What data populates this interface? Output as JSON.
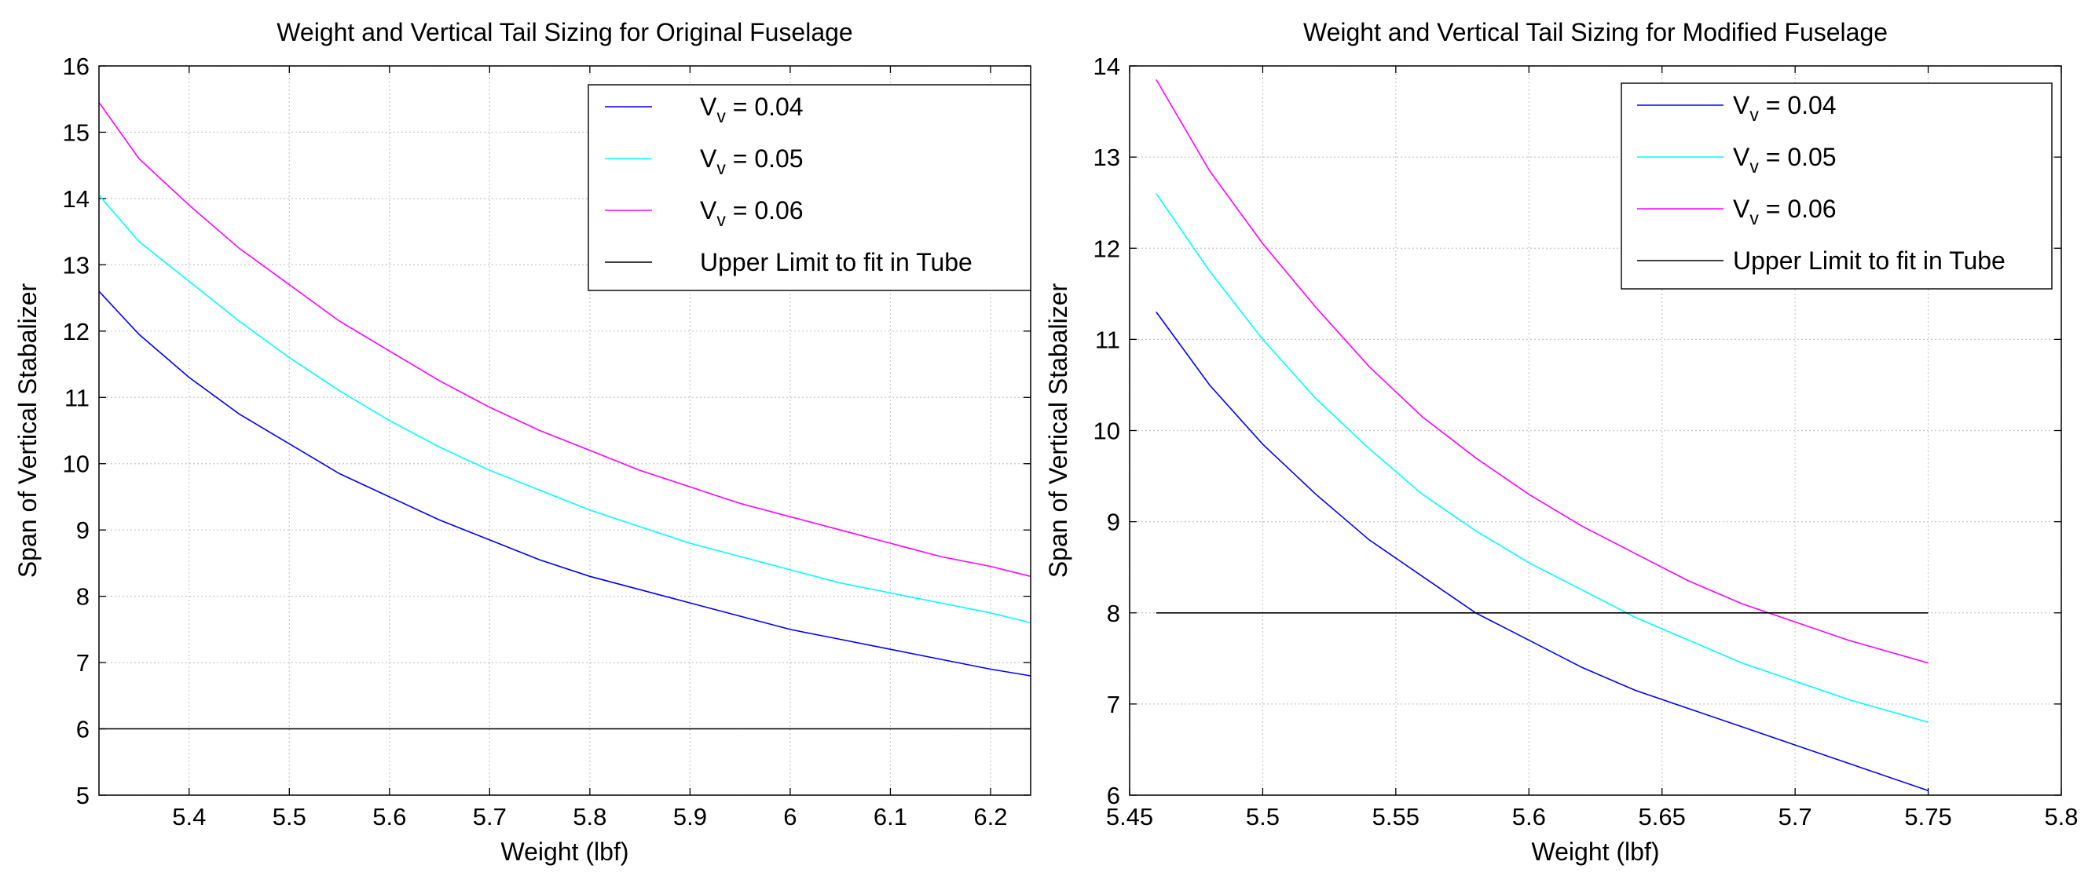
{
  "chart_data": [
    {
      "type": "line",
      "title": "Weight and Vertical Tail Sizing for Original Fuselage",
      "xlabel": "Weight (lbf)",
      "ylabel": "Span of Vertical Stabalizer",
      "xlim": [
        5.31,
        6.24
      ],
      "ylim": [
        5,
        16
      ],
      "xticks": [
        "5.4",
        "5.5",
        "5.6",
        "5.7",
        "5.8",
        "5.9",
        "6",
        "6.1",
        "6.2"
      ],
      "yticks": [
        "5",
        "6",
        "7",
        "8",
        "9",
        "10",
        "11",
        "12",
        "13",
        "14",
        "15",
        "16"
      ],
      "grid": true,
      "legend_position": "top-right",
      "series": [
        {
          "name": "V_v = 0.04",
          "color": "#0000ff",
          "x": [
            5.31,
            5.35,
            5.4,
            5.45,
            5.5,
            5.55,
            5.6,
            5.65,
            5.7,
            5.75,
            5.8,
            5.85,
            5.9,
            5.95,
            6.0,
            6.05,
            6.1,
            6.15,
            6.2,
            6.24
          ],
          "y": [
            12.6,
            11.95,
            11.3,
            10.75,
            10.3,
            9.85,
            9.5,
            9.15,
            8.85,
            8.55,
            8.3,
            8.1,
            7.9,
            7.7,
            7.5,
            7.35,
            7.2,
            7.05,
            6.9,
            6.8
          ]
        },
        {
          "name": "V_v = 0.05",
          "color": "#00ffff",
          "x": [
            5.31,
            5.35,
            5.4,
            5.45,
            5.5,
            5.55,
            5.6,
            5.65,
            5.7,
            5.75,
            5.8,
            5.85,
            5.9,
            5.95,
            6.0,
            6.05,
            6.1,
            6.15,
            6.2,
            6.24
          ],
          "y": [
            14.05,
            13.35,
            12.75,
            12.15,
            11.6,
            11.1,
            10.65,
            10.25,
            9.9,
            9.6,
            9.3,
            9.05,
            8.8,
            8.6,
            8.4,
            8.2,
            8.05,
            7.9,
            7.75,
            7.6
          ]
        },
        {
          "name": "V_v = 0.06",
          "color": "#ff00ff",
          "x": [
            5.31,
            5.35,
            5.4,
            5.45,
            5.5,
            5.55,
            5.6,
            5.65,
            5.7,
            5.75,
            5.8,
            5.85,
            5.9,
            5.95,
            6.0,
            6.05,
            6.1,
            6.15,
            6.2,
            6.24
          ],
          "y": [
            15.45,
            14.6,
            13.9,
            13.25,
            12.7,
            12.15,
            11.7,
            11.25,
            10.85,
            10.5,
            10.2,
            9.9,
            9.65,
            9.4,
            9.2,
            9.0,
            8.8,
            8.6,
            8.45,
            8.3
          ]
        },
        {
          "name": "Upper Limit to fit in Tube",
          "color": "#000000",
          "x": [
            5.31,
            6.24
          ],
          "y": [
            6,
            6
          ]
        }
      ],
      "legend": {
        "entries": [
          {
            "main": "V",
            "sub": "v",
            "rest": " = 0.04",
            "color": "#0000ff"
          },
          {
            "main": "V",
            "sub": "v",
            "rest": " = 0.05",
            "color": "#00ffff"
          },
          {
            "main": "V",
            "sub": "v",
            "rest": " = 0.06",
            "color": "#ff00ff"
          },
          {
            "main": "Upper Limit to fit in Tube",
            "sub": "",
            "rest": "",
            "color": "#000000"
          }
        ]
      }
    },
    {
      "type": "line",
      "title": "Weight and Vertical Tail Sizing for Modified Fuselage",
      "xlabel": "Weight (lbf)",
      "ylabel": "Span of Vertical Stabalizer",
      "xlim": [
        5.45,
        5.8
      ],
      "ylim": [
        6,
        14
      ],
      "xticks": [
        "5.45",
        "5.5",
        "5.55",
        "5.6",
        "5.65",
        "5.7",
        "5.75",
        "5.8"
      ],
      "yticks": [
        "6",
        "7",
        "8",
        "9",
        "10",
        "11",
        "12",
        "13",
        "14"
      ],
      "grid": true,
      "legend_position": "top-right",
      "series": [
        {
          "name": "V_v = 0.04",
          "color": "#0000ff",
          "x": [
            5.46,
            5.48,
            5.5,
            5.52,
            5.54,
            5.56,
            5.58,
            5.6,
            5.62,
            5.64,
            5.66,
            5.68,
            5.7,
            5.72,
            5.75
          ],
          "y": [
            11.3,
            10.5,
            9.85,
            9.3,
            8.8,
            8.4,
            8.0,
            7.7,
            7.4,
            7.15,
            6.95,
            6.75,
            6.55,
            6.35,
            6.05
          ]
        },
        {
          "name": "V_v = 0.05",
          "color": "#00ffff",
          "x": [
            5.46,
            5.48,
            5.5,
            5.52,
            5.54,
            5.56,
            5.58,
            5.6,
            5.62,
            5.64,
            5.66,
            5.68,
            5.7,
            5.72,
            5.75
          ],
          "y": [
            12.6,
            11.75,
            11.0,
            10.35,
            9.8,
            9.3,
            8.9,
            8.55,
            8.25,
            7.95,
            7.7,
            7.45,
            7.25,
            7.05,
            6.8
          ]
        },
        {
          "name": "V_v = 0.06",
          "color": "#ff00ff",
          "x": [
            5.46,
            5.48,
            5.5,
            5.52,
            5.54,
            5.56,
            5.58,
            5.6,
            5.62,
            5.64,
            5.66,
            5.68,
            5.7,
            5.72,
            5.75
          ],
          "y": [
            13.85,
            12.85,
            12.05,
            11.35,
            10.7,
            10.15,
            9.7,
            9.3,
            8.95,
            8.65,
            8.35,
            8.1,
            7.9,
            7.7,
            7.45
          ]
        },
        {
          "name": "Upper Limit to fit in Tube",
          "color": "#000000",
          "x": [
            5.46,
            5.75
          ],
          "y": [
            8,
            8
          ]
        }
      ],
      "legend": {
        "entries": [
          {
            "main": "V",
            "sub": "v",
            "rest": " = 0.04",
            "color": "#0000ff"
          },
          {
            "main": "V",
            "sub": "v",
            "rest": " = 0.05",
            "color": "#00ffff"
          },
          {
            "main": "V",
            "sub": "v",
            "rest": " = 0.06",
            "color": "#ff00ff"
          },
          {
            "main": "Upper Limit to fit in Tube",
            "sub": "",
            "rest": "",
            "color": "#000000"
          }
        ]
      }
    }
  ]
}
